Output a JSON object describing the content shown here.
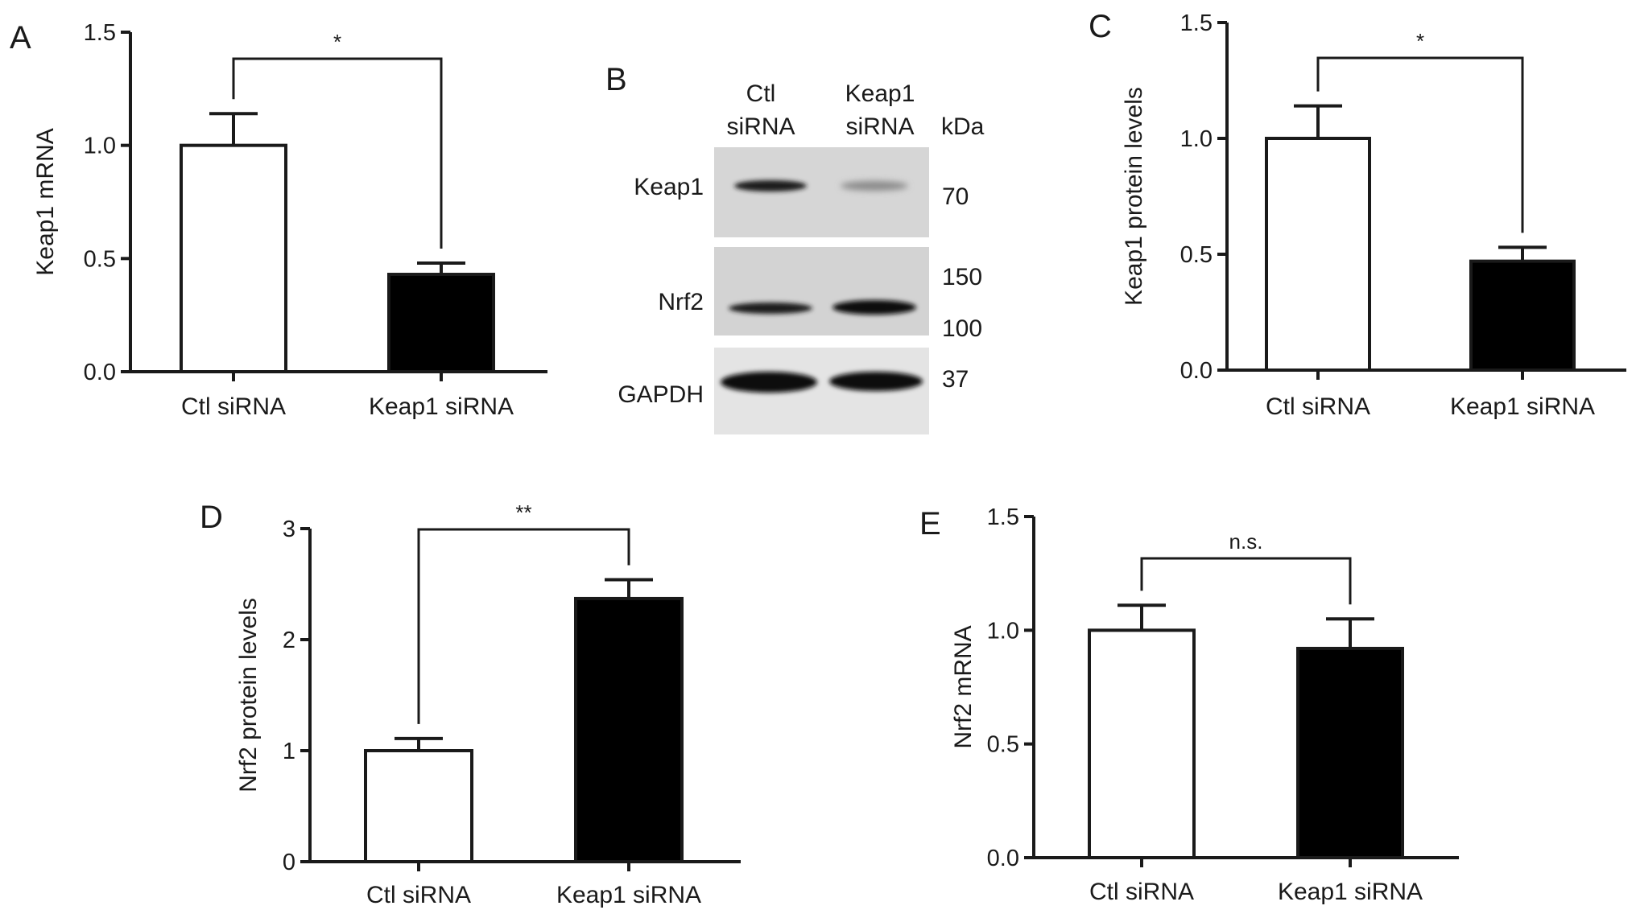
{
  "chart_data": [
    {
      "panel": "A",
      "type": "bar",
      "categories": [
        "Ctl siRNA",
        "Keap1 siRNA"
      ],
      "values": [
        1.0,
        0.43
      ],
      "errors": [
        0.14,
        0.05
      ],
      "bar_colors": [
        "#ffffff",
        "#000000"
      ],
      "ylabel": "Keap1 mRNA",
      "ylim": [
        0,
        1.5
      ],
      "yticks": [
        "0.0",
        "0.5",
        "1.0",
        "1.5"
      ],
      "significance": "*"
    },
    {
      "panel": "C",
      "type": "bar",
      "categories": [
        "Ctl siRNA",
        "Keap1 siRNA"
      ],
      "values": [
        1.0,
        0.47
      ],
      "errors": [
        0.14,
        0.06
      ],
      "bar_colors": [
        "#ffffff",
        "#000000"
      ],
      "ylabel": "Keap1 protein levels",
      "ylim": [
        0,
        1.5
      ],
      "yticks": [
        "0.0",
        "0.5",
        "1.0",
        "1.5"
      ],
      "significance": "*"
    },
    {
      "panel": "D",
      "type": "bar",
      "categories": [
        "Ctl siRNA",
        "Keap1 siRNA"
      ],
      "values": [
        1.0,
        2.37
      ],
      "errors": [
        0.11,
        0.17
      ],
      "bar_colors": [
        "#ffffff",
        "#000000"
      ],
      "ylabel": "Nrf2 protein levels",
      "ylim": [
        0,
        3
      ],
      "yticks": [
        "0",
        "1",
        "2",
        "3"
      ],
      "significance": "**"
    },
    {
      "panel": "E",
      "type": "bar",
      "categories": [
        "Ctl siRNA",
        "Keap1 siRNA"
      ],
      "values": [
        1.0,
        0.92
      ],
      "errors": [
        0.11,
        0.13
      ],
      "bar_colors": [
        "#ffffff",
        "#000000"
      ],
      "ylabel": "Nrf2 mRNA",
      "ylim": [
        0,
        1.5
      ],
      "yticks": [
        "0.0",
        "0.5",
        "1.0",
        "1.5"
      ],
      "significance": "n.s."
    }
  ],
  "blot": {
    "panel": "B",
    "lane_headers": [
      [
        "Ctl",
        "siRNA"
      ],
      [
        "Keap1",
        "siRNA"
      ]
    ],
    "kda_header": "kDa",
    "rows": [
      {
        "label": "Keap1",
        "markers": [
          "70"
        ]
      },
      {
        "label": "Nrf2",
        "markers": [
          "150",
          "100"
        ]
      },
      {
        "label": "GAPDH",
        "markers": [
          "37"
        ]
      }
    ],
    "band_intensity": [
      [
        0.8,
        0.25
      ],
      [
        0.85,
        0.95
      ],
      [
        1.0,
        1.0
      ]
    ]
  }
}
